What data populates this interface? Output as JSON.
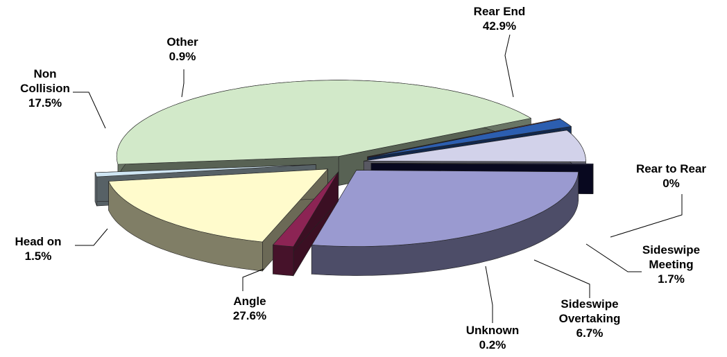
{
  "chart_data": {
    "type": "pie3d",
    "categories": [
      "Rear End",
      "Rear to Rear",
      "Sideswipe Meeting",
      "Sideswipe Overtaking",
      "Unknown",
      "Angle",
      "Head on",
      "Non Collision",
      "Other"
    ],
    "values": [
      42.9,
      0,
      1.7,
      6.7,
      0.2,
      27.6,
      1.5,
      17.5,
      0.9
    ],
    "value_labels": [
      "42.9%",
      "0%",
      "1.7%",
      "6.7%",
      "0.2%",
      "27.6%",
      "1.5%",
      "17.5%",
      "0.9%"
    ],
    "colors": [
      "#d2e9c9",
      "#8b3c3c",
      "#2c5eb0",
      "#d2d2ea",
      "#12124a",
      "#9a9ad0",
      "#8c2454",
      "#fffbcc",
      "#cfe6f4"
    ]
  }
}
